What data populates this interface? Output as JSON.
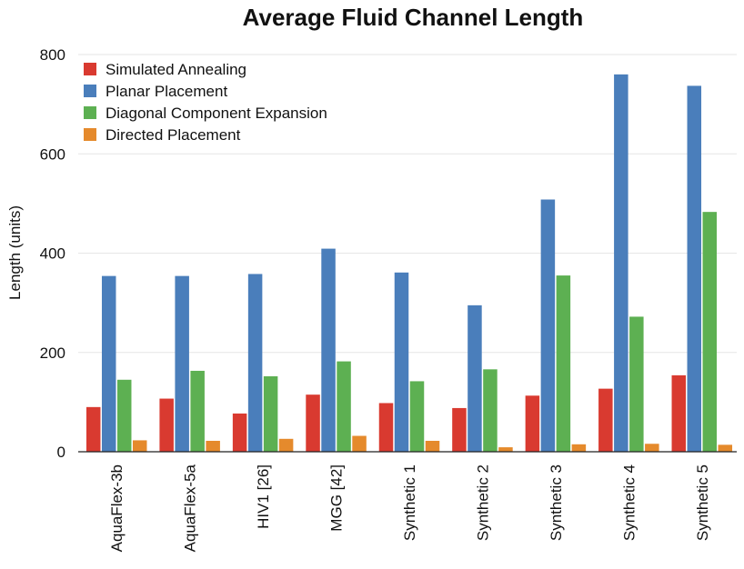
{
  "chart_data": {
    "type": "bar",
    "title": "Average Fluid Channel Length",
    "xlabel": "",
    "ylabel": "Length (units)",
    "ylim": [
      0,
      800
    ],
    "yticks": [
      0,
      200,
      400,
      600,
      800
    ],
    "grid": true,
    "legend_position": "top-left",
    "categories": [
      "AquaFlex-3b",
      "AquaFlex-5a",
      "HIV1 [26]",
      "MGG [42]",
      "Synthetic 1",
      "Synthetic 2",
      "Synthetic 3",
      "Synthetic 4",
      "Synthetic 5"
    ],
    "series": [
      {
        "name": "Simulated Annealing",
        "color": "#d93a30",
        "values": [
          90,
          107,
          77,
          115,
          98,
          88,
          113,
          127,
          154
        ]
      },
      {
        "name": "Planar Placement",
        "color": "#4a7ebb",
        "values": [
          354,
          354,
          358,
          409,
          361,
          295,
          508,
          760,
          737
        ]
      },
      {
        "name": "Diagonal Component Expansion",
        "color": "#5db052",
        "values": [
          145,
          163,
          152,
          182,
          142,
          166,
          355,
          272,
          483
        ]
      },
      {
        "name": "Directed Placement",
        "color": "#e58a2c",
        "values": [
          23,
          22,
          26,
          32,
          22,
          9,
          15,
          16,
          14
        ]
      }
    ]
  }
}
